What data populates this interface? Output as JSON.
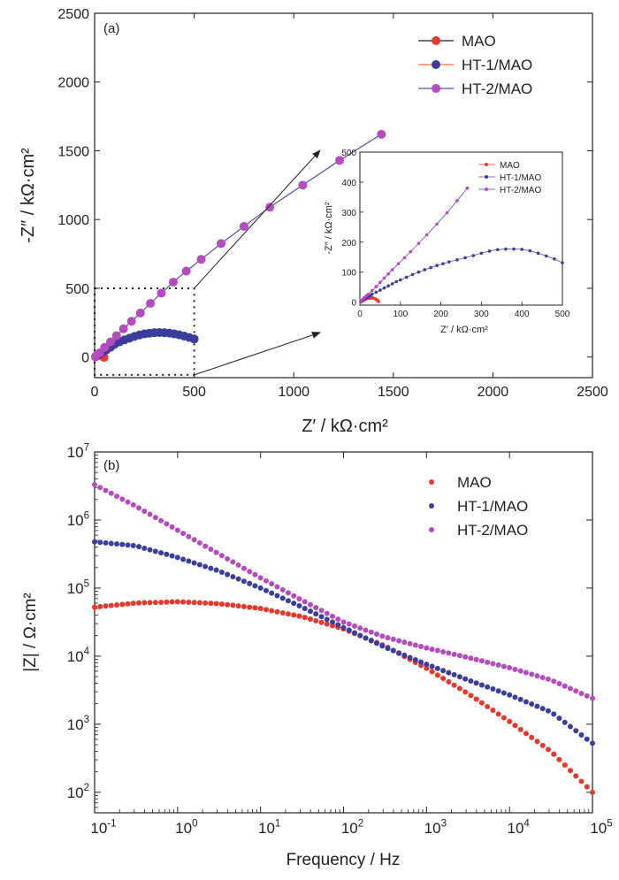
{
  "colors": {
    "mao": "#e8372c",
    "ht1": "#3b3d9c",
    "ht2": "#b44bbf",
    "axis": "#222222",
    "ht1_line": "#ff6a3a"
  },
  "chart_data": [
    {
      "panel": "(a)",
      "type": "scatter",
      "xlabel": "Z′ / kΩ·cm²",
      "ylabel": "-Z″ / kΩ·cm²",
      "xlim": [
        0,
        2500
      ],
      "ylim": [
        -150,
        2500
      ],
      "xticks": [
        0,
        500,
        1000,
        1500,
        2000,
        2500
      ],
      "yticks": [
        0,
        500,
        1000,
        1500,
        2000,
        2500
      ],
      "legend_position": "top-right",
      "zoom_box": {
        "x": [
          0,
          500
        ],
        "y": [
          -130,
          500
        ]
      },
      "series": [
        {
          "name": "MAO",
          "color_key": "mao",
          "x": [
            5,
            12,
            20,
            28,
            35,
            40,
            44,
            46,
            47
          ],
          "y": [
            2,
            8,
            13,
            15,
            14,
            11,
            6,
            2,
            -3
          ]
        },
        {
          "name": "HT-1/MAO",
          "color_key": "ht1",
          "x": [
            5,
            20,
            40,
            60,
            80,
            100,
            125,
            150,
            175,
            200,
            225,
            250,
            275,
            300,
            325,
            350,
            375,
            400,
            425,
            450,
            475,
            500
          ],
          "y": [
            3,
            15,
            35,
            53,
            72,
            92,
            110,
            125,
            137,
            150,
            160,
            168,
            173,
            177,
            178,
            177,
            174,
            168,
            161,
            152,
            142,
            131
          ]
        },
        {
          "name": "HT-2/MAO",
          "color_key": "ht2",
          "x": [
            5,
            25,
            50,
            80,
            110,
            145,
            185,
            230,
            280,
            335,
            395,
            460,
            535,
            635,
            750,
            880,
            1045,
            1230,
            1440
          ],
          "y": [
            5,
            30,
            70,
            110,
            155,
            205,
            260,
            320,
            390,
            465,
            545,
            625,
            710,
            825,
            950,
            1090,
            1250,
            1430,
            1620
          ]
        }
      ]
    },
    {
      "panel": "inset",
      "type": "scatter",
      "xlabel": "Z′ / kΩ·cm²",
      "ylabel": "-Z″ / kΩ·cm²",
      "xlim": [
        0,
        500
      ],
      "ylim": [
        -10,
        500
      ],
      "xticks": [
        0,
        100,
        200,
        300,
        400,
        500
      ],
      "yticks": [
        0,
        100,
        200,
        300,
        400,
        500
      ],
      "legend_position": "top-left",
      "series": [
        {
          "name": "MAO",
          "color_key": "mao",
          "x": [
            2,
            6,
            10,
            14,
            18,
            22,
            26,
            30,
            34,
            38,
            41,
            44,
            46
          ],
          "y": [
            0,
            3,
            7,
            10,
            12,
            13,
            14,
            14,
            13,
            11,
            8,
            5,
            2
          ]
        },
        {
          "name": "HT-1/MAO",
          "color_key": "ht1",
          "x": [
            2,
            6,
            10,
            15,
            20,
            25,
            30,
            40,
            50,
            60,
            70,
            80,
            90,
            100,
            115,
            130,
            145,
            160,
            175,
            190,
            205,
            220,
            240,
            260,
            280,
            300,
            320,
            340,
            360,
            380,
            400,
            420,
            440,
            460,
            480,
            500
          ],
          "y": [
            2,
            6,
            10,
            14,
            18,
            22,
            26,
            33,
            40,
            47,
            54,
            61,
            68,
            74,
            83,
            92,
            100,
            108,
            115,
            122,
            128,
            134,
            141,
            148,
            155,
            163,
            170,
            175,
            177,
            177,
            176,
            171,
            163,
            154,
            144,
            131
          ]
        },
        {
          "name": "HT-2/MAO",
          "color_key": "ht2",
          "x": [
            2,
            6,
            10,
            15,
            20,
            30,
            40,
            50,
            60,
            70,
            80,
            95,
            110,
            125,
            145,
            165,
            190,
            215,
            240,
            265
          ],
          "y": [
            2,
            8,
            14,
            20,
            26,
            38,
            52,
            66,
            80,
            94,
            108,
            128,
            148,
            168,
            196,
            224,
            260,
            298,
            338,
            380
          ]
        }
      ]
    },
    {
      "panel": "(b)",
      "type": "scatter",
      "xlabel": "Frequency / Hz",
      "ylabel": "|Z| / Ω·cm²",
      "xscale": "log",
      "yscale": "log",
      "xlim": [
        0.1,
        100000
      ],
      "ylim": [
        50,
        10000000
      ],
      "xticks": [
        0.1,
        1,
        10,
        100,
        1000,
        10000,
        100000
      ],
      "yticks": [
        100,
        1000,
        10000,
        100000,
        1000000,
        10000000
      ],
      "legend_position": "top-right",
      "series": [
        {
          "name": "MAO",
          "color_key": "mao",
          "log_f": [
            -1,
            -0.5,
            0,
            0.5,
            1,
            1.5,
            2,
            2.5,
            3,
            3.5,
            4,
            4.5,
            5
          ],
          "log_z": [
            4.72,
            4.78,
            4.8,
            4.77,
            4.7,
            4.58,
            4.4,
            4.15,
            3.82,
            3.45,
            3.04,
            2.6,
            2.0
          ]
        },
        {
          "name": "HT-1/MAO",
          "color_key": "ht1",
          "log_f": [
            -1,
            -0.5,
            0,
            0.5,
            1,
            1.5,
            2,
            2.5,
            3,
            3.5,
            4,
            4.5,
            5
          ],
          "log_z": [
            5.68,
            5.62,
            5.45,
            5.25,
            5.0,
            4.72,
            4.42,
            4.13,
            3.88,
            3.65,
            3.43,
            3.18,
            2.72
          ]
        },
        {
          "name": "HT-2/MAO",
          "color_key": "ht2",
          "log_f": [
            -1,
            -0.5,
            0,
            0.5,
            1,
            1.5,
            2,
            2.5,
            3,
            3.5,
            4,
            4.5,
            5
          ],
          "log_z": [
            6.52,
            6.2,
            5.85,
            5.5,
            5.15,
            4.82,
            4.5,
            4.28,
            4.12,
            3.98,
            3.83,
            3.65,
            3.38
          ]
        }
      ]
    }
  ]
}
